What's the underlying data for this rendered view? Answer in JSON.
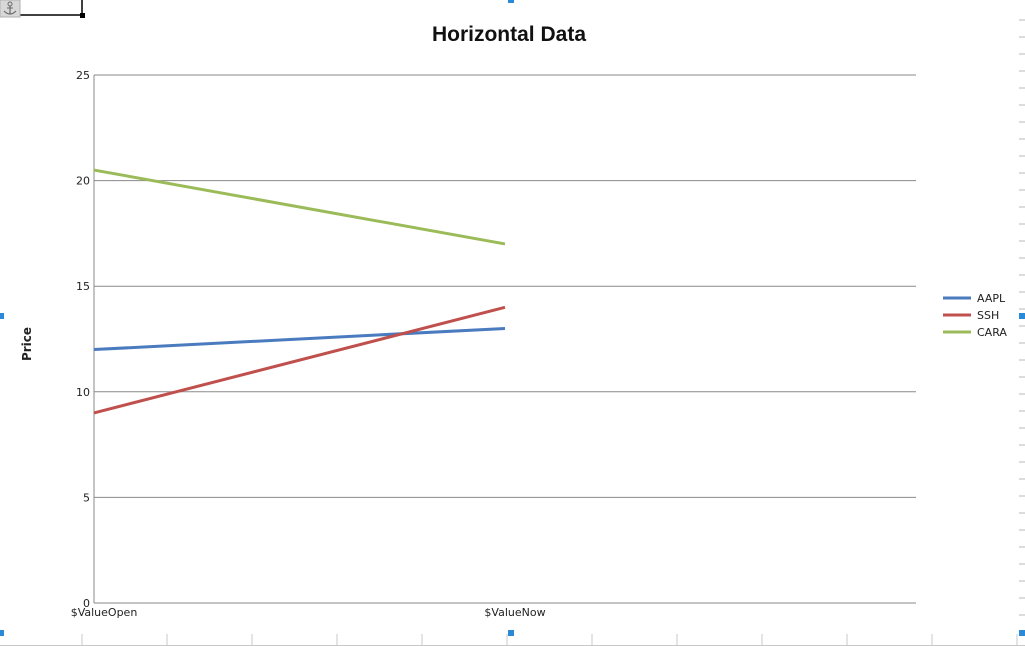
{
  "chart_data": {
    "type": "line",
    "title": "Horizontal Data",
    "xlabel": "",
    "ylabel": "Price",
    "categories": [
      "$ValueOpen",
      "$ValueNow"
    ],
    "x_slots": 2,
    "ylim": [
      0,
      25
    ],
    "yticks": [
      0,
      5,
      10,
      15,
      20,
      25
    ],
    "grid": true,
    "legend_position": "right",
    "series": [
      {
        "name": "AAPL",
        "values": [
          12,
          13
        ],
        "color": "#4a7bbf"
      },
      {
        "name": "SSH",
        "values": [
          9,
          14
        ],
        "color": "#c0504d"
      },
      {
        "name": "CARA",
        "values": [
          20.5,
          17
        ],
        "color": "#9bbb59"
      }
    ]
  },
  "ui": {
    "anchor_icon": "anchor-icon",
    "selection_handle_color": "#2a8ad8"
  }
}
